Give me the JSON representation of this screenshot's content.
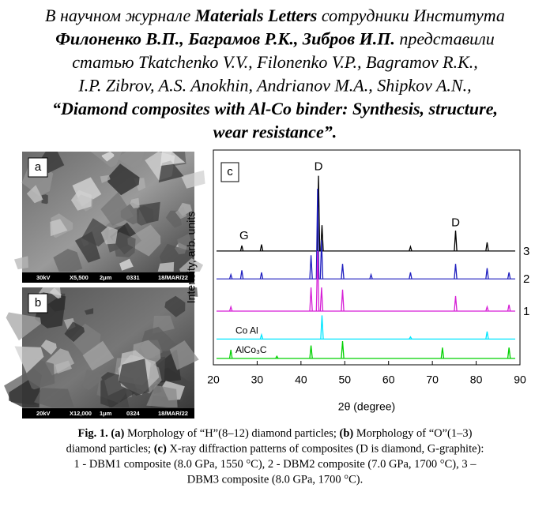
{
  "header": {
    "lines": [
      [
        {
          "text": "В научном журнале ",
          "style": "italic"
        },
        {
          "text": "Materials Letters",
          "style": "bold-italic"
        },
        {
          "text": "  сотрудники  Института",
          "style": "italic"
        }
      ],
      [
        {
          "text": "Филоненко В.П., Баграмов Р.К., Зибров И.П.",
          "style": "bold-italic"
        },
        {
          "text": " представили",
          "style": "italic"
        }
      ],
      [
        {
          "text": "статью Tkatchenko V.V., Filonenko V.P., Bagramov R.K.,",
          "style": "italic"
        }
      ],
      [
        {
          "text": "I.P. Zibrov, A.S. Anokhin, Andrianov M.A., Shipkov A.N.,",
          "style": "italic"
        }
      ],
      [
        {
          "text": "“Diamond composites with Al-Co binder: Synthesis, structure,",
          "style": "bold-italic"
        }
      ],
      [
        {
          "text": "wear resistance”.",
          "style": "bold-italic"
        }
      ]
    ]
  },
  "images": [
    {
      "label": "a",
      "info": [
        "30kV",
        "X5,500",
        "2μm",
        "0331",
        "18/MAR/22"
      ]
    },
    {
      "label": "b",
      "info": [
        "20kV",
        "X12,000",
        "1μm",
        "0324",
        "18/MAR/22"
      ]
    }
  ],
  "chart_data": {
    "type": "xrd",
    "label": "c",
    "xlabel": "2θ (degree)",
    "ylabel": "Intensity, arb. units",
    "xlim": [
      20,
      90
    ],
    "xticks": [
      20,
      30,
      40,
      50,
      60,
      70,
      80,
      90
    ],
    "ylim": [
      0,
      100
    ],
    "annotations": [
      {
        "text": "G",
        "x": 27,
        "y": 60
      },
      {
        "text": "D",
        "x": 44,
        "y": 92
      },
      {
        "text": "D",
        "x": 75.3,
        "y": 66
      }
    ],
    "series": [
      {
        "name": "3",
        "color": "#000000",
        "baseline": 53,
        "x": [
          26.5,
          31,
          44,
          44.8,
          65,
          75.3,
          82.5
        ],
        "values": [
          55.5,
          56,
          88,
          65,
          55,
          62.5,
          57
        ]
      },
      {
        "name": "2",
        "color": "#1f1fbf",
        "baseline": 40,
        "x": [
          24,
          26.5,
          31,
          42.3,
          43.8,
          44.7,
          49.5,
          56,
          65,
          75.3,
          82.5,
          87.5
        ],
        "values": [
          42,
          44,
          43,
          51,
          82,
          58,
          47,
          42,
          43,
          47,
          45,
          43
        ]
      },
      {
        "name": "1",
        "color": "#d61fd6",
        "baseline": 25,
        "x": [
          24,
          42.3,
          43.8,
          44.7,
          49.5,
          75.3,
          82.5,
          87.5
        ],
        "values": [
          27,
          36,
          53,
          36,
          35,
          32,
          27,
          28
        ]
      },
      {
        "name": "Co Al",
        "color": "#00e5ff",
        "baseline": 12,
        "x": [
          31,
          44.8,
          65,
          82.5
        ],
        "values": [
          14,
          23,
          13,
          15.5
        ]
      },
      {
        "name": "AlCo₃C",
        "color": "#00d000",
        "baseline": 3,
        "x": [
          24,
          34.5,
          42.3,
          49.5,
          72.3,
          87.5
        ],
        "values": [
          7,
          4,
          9,
          11,
          8,
          8
        ]
      }
    ]
  },
  "caption": {
    "lines": [
      [
        {
          "text": "Fig. 1. (a)",
          "style": "bold"
        },
        {
          "text": " Morphology of “H”(8–12) diamond particles; ",
          "style": "normal"
        },
        {
          "text": "(b)",
          "style": "bold"
        },
        {
          "text": " Morphology of “O”(1–3)",
          "style": "normal"
        }
      ],
      [
        {
          "text": "diamond particles; ",
          "style": "normal"
        },
        {
          "text": "(c)",
          "style": "bold"
        },
        {
          "text": " X-ray diffraction patterns of composites (D is diamond, G-graphite):",
          "style": "normal"
        }
      ],
      [
        {
          "text": "1 - DBM1 composite (8.0 GPa, 1550 °C), 2 - DBM2 composite (7.0 GPa, 1700 °C), 3 –",
          "style": "normal"
        }
      ],
      [
        {
          "text": "DBM3 composite (8.0 GPa, 1700 °C).",
          "style": "normal"
        }
      ]
    ]
  }
}
